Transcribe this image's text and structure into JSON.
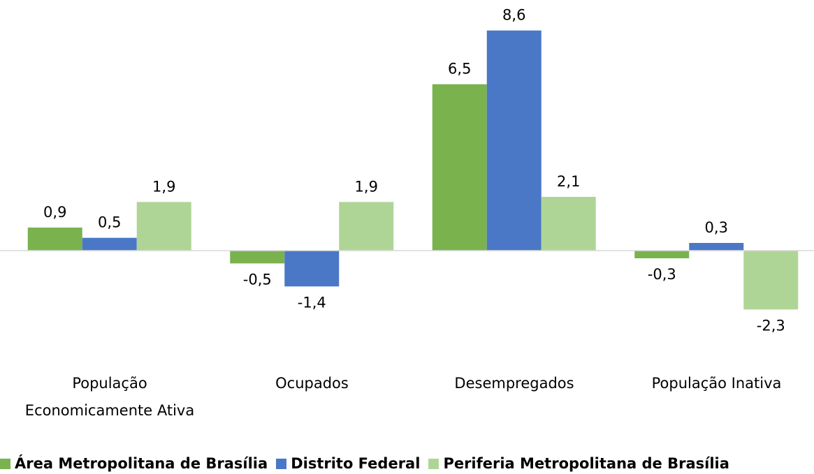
{
  "chart_data": {
    "type": "bar",
    "categories": [
      "População Economicamente Ativa",
      "Ocupados",
      "Desempregados",
      "População Inativa"
    ],
    "series": [
      {
        "name": "Área Metropolitana de Brasília",
        "color": "#7ab24e",
        "values": [
          0.9,
          -0.5,
          6.5,
          -0.3
        ],
        "value_labels": [
          "0,9",
          "-0,5",
          "6,5",
          "-0,3"
        ]
      },
      {
        "name": "Distrito Federal",
        "color": "#4a78c6",
        "values": [
          0.5,
          -1.4,
          8.6,
          0.3
        ],
        "value_labels": [
          "0,5",
          "-1,4",
          "8,6",
          "0,3"
        ]
      },
      {
        "name": "Periferia Metropolitana de Brasília",
        "color": "#afd596",
        "values": [
          1.9,
          1.9,
          2.1,
          -2.3
        ],
        "value_labels": [
          "1,9",
          "1,9",
          "2,1",
          "-2,3"
        ]
      }
    ],
    "ylim": [
      -3,
      9
    ],
    "legend": "bottom"
  }
}
